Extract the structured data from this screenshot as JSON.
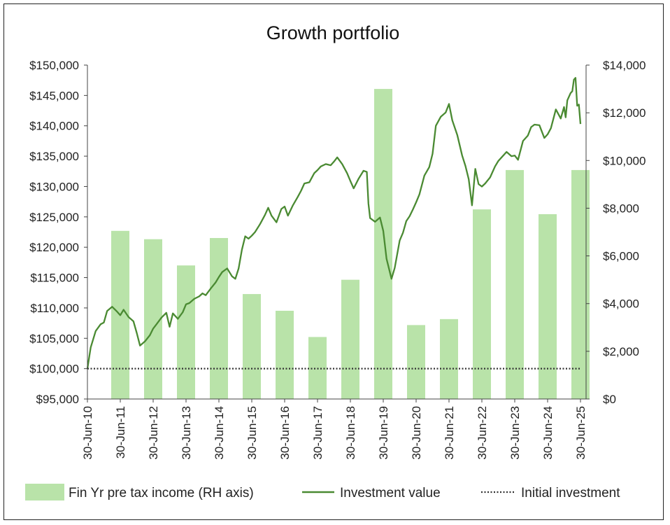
{
  "chart_data": {
    "type": "bar+line",
    "title": "Growth portfolio",
    "left_axis": {
      "min": 95000,
      "max": 150000,
      "step": 5000,
      "ticks": [
        "$95,000",
        "$100,000",
        "$105,000",
        "$110,000",
        "$115,000",
        "$120,000",
        "$125,000",
        "$130,000",
        "$135,000",
        "$140,000",
        "$145,000",
        "$150,000"
      ]
    },
    "right_axis": {
      "min": 0,
      "max": 14000,
      "step": 2000,
      "ticks": [
        "$0",
        "$2,000",
        "$4,000",
        "$6,000",
        "$8,000",
        "$10,000",
        "$12,000",
        "$14,000"
      ]
    },
    "x_ticks": [
      "30-Jun-10",
      "30-Jun-11",
      "30-Jun-12",
      "30-Jun-13",
      "30-Jun-14",
      "30-Jun-15",
      "30-Jun-16",
      "30-Jun-17",
      "30-Jun-18",
      "30-Jun-19",
      "30-Jun-20",
      "30-Jun-21",
      "30-Jun-22",
      "30-Jun-23",
      "30-Jun-24",
      "30-Jun-25"
    ],
    "series": [
      {
        "name": "Fin Yr pre tax income (RH axis)",
        "type": "bar",
        "axis": "right",
        "color": "#b9e3a9",
        "x": [
          "30-Jun-11",
          "30-Jun-12",
          "30-Jun-13",
          "30-Jun-14",
          "30-Jun-15",
          "30-Jun-16",
          "30-Jun-17",
          "30-Jun-18",
          "30-Jun-19",
          "30-Jun-20",
          "30-Jun-21",
          "30-Jun-22",
          "30-Jun-23",
          "30-Jun-24",
          "30-Jun-25"
        ],
        "values": [
          7050,
          6700,
          5600,
          6750,
          4400,
          3700,
          2600,
          5000,
          13000,
          3100,
          3350,
          7950,
          9600,
          7750,
          9600
        ]
      },
      {
        "name": "Investment value",
        "type": "line",
        "axis": "left",
        "color": "#4a8a32",
        "x": [
          2010.5,
          2010.6,
          2010.75,
          2010.9,
          2011.0,
          2011.1,
          2011.25,
          2011.4,
          2011.5,
          2011.6,
          2011.75,
          2011.9,
          2012.0,
          2012.1,
          2012.25,
          2012.4,
          2012.5,
          2012.6,
          2012.75,
          2012.9,
          2013.0,
          2013.1,
          2013.25,
          2013.4,
          2013.5,
          2013.6,
          2013.75,
          2013.9,
          2014.0,
          2014.1,
          2014.25,
          2014.4,
          2014.5,
          2014.6,
          2014.75,
          2014.9,
          2015.0,
          2015.1,
          2015.2,
          2015.3,
          2015.4,
          2015.5,
          2015.6,
          2015.75,
          2015.9,
          2016.0,
          2016.1,
          2016.25,
          2016.4,
          2016.5,
          2016.6,
          2016.75,
          2016.9,
          2017.0,
          2017.1,
          2017.25,
          2017.4,
          2017.5,
          2017.6,
          2017.75,
          2017.9,
          2018.0,
          2018.1,
          2018.25,
          2018.4,
          2018.5,
          2018.6,
          2018.75,
          2018.9,
          2019.0,
          2019.05,
          2019.1,
          2019.25,
          2019.4,
          2019.5,
          2019.6,
          2019.75,
          2019.85,
          2020.0,
          2020.1,
          2020.2,
          2020.3,
          2020.4,
          2020.5,
          2020.6,
          2020.75,
          2020.9,
          2021.0,
          2021.1,
          2021.25,
          2021.4,
          2021.5,
          2021.6,
          2021.75,
          2021.9,
          2022.0,
          2022.1,
          2022.2,
          2022.3,
          2022.4,
          2022.5,
          2022.6,
          2022.75,
          2022.9,
          2023.0,
          2023.1,
          2023.25,
          2023.4,
          2023.5,
          2023.6,
          2023.75,
          2023.9,
          2024.0,
          2024.1,
          2024.25,
          2024.4,
          2024.5,
          2024.6,
          2024.75,
          2024.9,
          2025.0,
          2025.05,
          2025.1,
          2025.2,
          2025.25,
          2025.3,
          2025.35,
          2025.4,
          2025.45,
          2025.5
        ],
        "values": [
          100000,
          103500,
          106200,
          107300,
          107600,
          109500,
          110200,
          109400,
          108800,
          109700,
          108500,
          107800,
          105900,
          103800,
          104500,
          105500,
          106600,
          107300,
          108400,
          109200,
          106900,
          109100,
          108200,
          109300,
          110600,
          110800,
          111500,
          111900,
          112400,
          112100,
          113200,
          114200,
          115100,
          115900,
          116500,
          115200,
          114800,
          116500,
          119600,
          121800,
          121400,
          121900,
          122500,
          123800,
          125300,
          126500,
          125200,
          124100,
          126300,
          126700,
          125200,
          126900,
          128300,
          129300,
          130500,
          130700,
          132200,
          132700,
          133300,
          133700,
          133500,
          134100,
          134800,
          133700,
          132200,
          130900,
          129700,
          131300,
          132600,
          132400,
          127200,
          124800,
          124200,
          124900,
          122700,
          118100,
          114800,
          116600,
          121100,
          122400,
          124300,
          125100,
          126200,
          127400,
          128700,
          131800,
          133200,
          135400,
          140000,
          141500,
          142200,
          143600,
          140900,
          138500,
          135100,
          133400,
          131200,
          126900,
          132900,
          130400,
          130000,
          130500,
          131500,
          133300,
          134200,
          134800,
          135700,
          135000,
          135100,
          134400,
          137500,
          138400,
          139800,
          140200,
          140100,
          138000,
          138600,
          139600,
          142700,
          141200,
          143100,
          141400,
          144200,
          145400,
          145700,
          147600,
          147900,
          143300,
          143500,
          140300
        ]
      },
      {
        "name": "Initial investment",
        "type": "line",
        "axis": "left",
        "style": "dotted",
        "color": "#333333",
        "x": [
          2010.5,
          2025.5
        ],
        "values": [
          100000,
          100000
        ]
      }
    ],
    "legend_position": "bottom",
    "grid": false
  },
  "legend": {
    "bar_label": "Fin Yr pre tax income (RH axis)",
    "line_label": "Investment value",
    "dotted_label": "Initial investment"
  }
}
